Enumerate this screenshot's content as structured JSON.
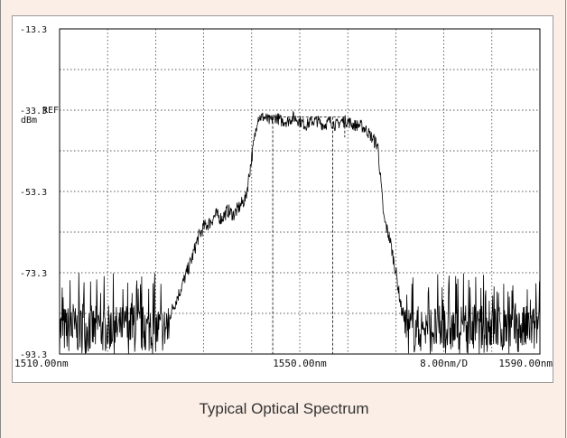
{
  "chart_data": {
    "type": "line",
    "title": "",
    "caption": "Typical Optical Spectrum",
    "x_unit": "nm",
    "y_unit": "dBm",
    "xlim": [
      1510.0,
      1590.0
    ],
    "ylim": [
      -93.3,
      -13.3
    ],
    "x_divisions": 10,
    "y_divisions": 8,
    "y_tick_labels": [
      "-13.3",
      "-33.3",
      "-53.3",
      "-73.3",
      "-93.3"
    ],
    "ref_marker": "REF",
    "ref_unit_label": "dBm",
    "x_tick_labels": {
      "left": "1510.00nm",
      "center": "1550.00nm",
      "scale": "8.00nm/D",
      "right": "1590.00nm"
    },
    "grid": true,
    "series": [
      {
        "color": "#000000",
        "x": [
          1510,
          1518,
          1522,
          1524,
          1526,
          1528,
          1530,
          1531,
          1532,
          1533,
          1534,
          1535,
          1536,
          1537,
          1538,
          1539,
          1540,
          1541,
          1542,
          1543,
          1544,
          1545,
          1546,
          1547,
          1548,
          1549,
          1550,
          1551,
          1552,
          1553,
          1554,
          1555,
          1556,
          1557,
          1558,
          1559,
          1560,
          1561,
          1562,
          1563,
          1564,
          1565,
          1566,
          1567,
          1568,
          1570,
          1574,
          1580,
          1586,
          1590
        ],
        "y": [
          -85,
          -85,
          -85,
          -85,
          -85,
          -85,
          -78,
          -74,
          -70,
          -65,
          -62,
          -61,
          -59,
          -60,
          -58,
          -59,
          -57,
          -55,
          -45,
          -35,
          -35,
          -36,
          -35,
          -36,
          -36,
          -35,
          -36,
          -37,
          -36,
          -36,
          -37,
          -36,
          -37,
          -36,
          -36,
          -37,
          -37,
          -38,
          -40,
          -42,
          -60,
          -65,
          -73,
          -83,
          -85,
          -85,
          -85,
          -85,
          -85,
          -85
        ]
      }
    ],
    "markers": {
      "dashed_box_top": -35.0,
      "dashed_box_x": [
        1543.5,
        1557.5
      ],
      "dashed_verticals": [
        1545.5,
        1555.5
      ]
    }
  }
}
